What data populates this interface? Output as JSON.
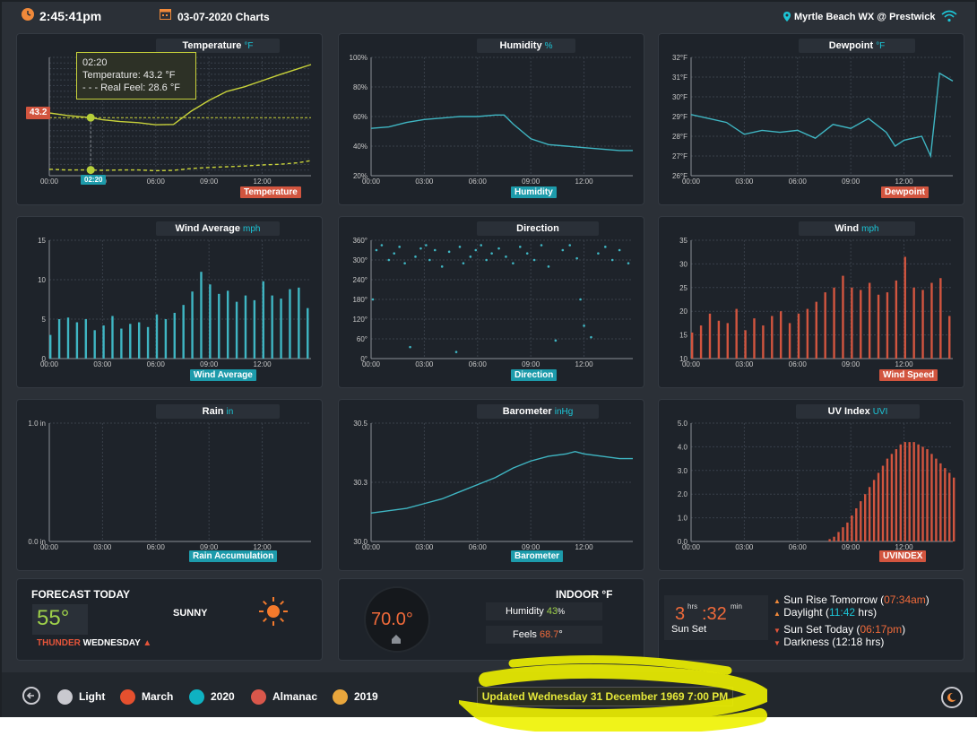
{
  "topbar": {
    "time": "2:45:41pm",
    "date_title": "03-07-2020 Charts",
    "station": "Myrtle Beach WX @ Prestwick"
  },
  "colors": {
    "background": "#2b3037",
    "panel": "#1e232a",
    "teal": "#1cc5d6",
    "series_teal": "#3fb6c3",
    "series_red": "#d2553f",
    "temperature_yellow": "#c8d23a",
    "accent_orange": "#f0893a",
    "highlight": "#eef200"
  },
  "panels": {
    "temperature": {
      "title": "Temperature",
      "unit": "°F",
      "tag": "Temperature",
      "tooltip": {
        "time": "02:20",
        "line1": "Temperature:  43.2 °F",
        "line2": "- - - Real Feel:  28.6 °F"
      },
      "crosshair_value": "43.2",
      "crosshair_time": "02:20",
      "x_ticks": [
        "00:00",
        "00",
        "06:00",
        "09:00",
        "12:00"
      ]
    },
    "humidity": {
      "title": "Humidity",
      "unit": "%",
      "tag": "Humidity",
      "y_ticks": [
        "100%",
        "80%",
        "60%",
        "40%",
        "20%"
      ],
      "x_ticks": [
        "00:00",
        "03:00",
        "06:00",
        "09:00",
        "12:00"
      ]
    },
    "dewpoint": {
      "title": "Dewpoint",
      "unit": "°F",
      "tag": "Dewpoint",
      "y_ticks": [
        "32°F",
        "31°F",
        "30°F",
        "29°F",
        "28°F",
        "27°F",
        "26°F"
      ],
      "x_ticks": [
        "00:00",
        "03:00",
        "06:00",
        "09:00",
        "12:00"
      ]
    },
    "wind_average": {
      "title": "Wind Average",
      "unit": "mph",
      "tag": "Wind Average",
      "y_ticks": [
        "15",
        "10",
        "5",
        "0"
      ],
      "x_ticks": [
        "00:00",
        "03:00",
        "06:00",
        "09:00",
        "12:00"
      ]
    },
    "direction": {
      "title": "Direction",
      "unit": "",
      "tag": "Direction",
      "y_ticks": [
        "360°",
        "300°",
        "240°",
        "180°",
        "120°",
        "60°",
        "0°"
      ],
      "x_ticks": [
        "00:00",
        "03:00",
        "06:00",
        "09:00",
        "12:00"
      ]
    },
    "wind": {
      "title": "Wind",
      "unit": "mph",
      "tag": "Wind Speed",
      "y_ticks": [
        "35",
        "30",
        "25",
        "20",
        "15",
        "10"
      ],
      "x_ticks": [
        "00:00",
        "03:00",
        "06:00",
        "09:00",
        "12:00"
      ]
    },
    "rain": {
      "title": "Rain",
      "unit": "in",
      "tag": "Rain Accumulation",
      "y_ticks": [
        "1.0 in",
        "0.0 in"
      ],
      "x_ticks": [
        "00:00",
        "03:00",
        "06:00",
        "09:00",
        "12:00"
      ]
    },
    "barometer": {
      "title": "Barometer",
      "unit": "inHg",
      "tag": "Barometer",
      "y_ticks": [
        "30.5",
        "30.3",
        "30.0"
      ],
      "x_ticks": [
        "00:00",
        "03:00",
        "06:00",
        "09:00",
        "12:00"
      ]
    },
    "uv": {
      "title": "UV Index",
      "unit": "UVI",
      "tag": "UVINDEX",
      "y_ticks": [
        "5.0",
        "4.0",
        "3.0",
        "2.0",
        "1.0",
        "0.0"
      ],
      "x_ticks": [
        "00:00",
        "03:00",
        "06:00",
        "09:00",
        "12:00"
      ]
    }
  },
  "forecast": {
    "heading": "FORECAST TODAY",
    "temp": "55°",
    "condition": "SUNNY",
    "alert_word": "THUNDER",
    "day": "WEDNESDAY"
  },
  "indoor": {
    "heading": "INDOOR °F",
    "temp": "70.0°",
    "humidity_label": "Humidity",
    "humidity_value": "43",
    "humidity_unit": "%",
    "feels_label": "Feels",
    "feels_value": "68.7",
    "feels_unit": "°"
  },
  "sun": {
    "hours": "3",
    "hrs_label": "hrs",
    "minutes": ":32",
    "min_label": "min",
    "caption": "Sun Set",
    "rise_label": "Sun Rise Tomorrow (",
    "rise_time": "07:34am",
    "daylight_label": "Daylight (",
    "daylight_time": "11:42",
    "daylight_suffix": " hrs)",
    "set_label": "Sun Set Today (",
    "set_time": "06:17pm",
    "darkness": "Darkness (12:18 hrs)",
    "close_paren": ")"
  },
  "bottombar": {
    "legend": [
      {
        "label": "Light",
        "color": "#c9c9cf"
      },
      {
        "label": "March",
        "color": "#e5502e"
      },
      {
        "label": "2020",
        "color": "#0fb2c2"
      },
      {
        "label": "Almanac",
        "color": "#d9574b"
      },
      {
        "label": "2019",
        "color": "#e9a63c"
      }
    ],
    "updated": "Updated Wednesday 31 December 1969 7:00 PM"
  },
  "chart_data": [
    {
      "type": "line",
      "title": "Temperature",
      "ylabel": "°F",
      "xlabel": "",
      "x_ticks": [
        "00:00",
        "03:00",
        "06:00",
        "09:00",
        "12:00"
      ],
      "series": [
        {
          "name": "Temperature",
          "x": [
            "00:00",
            "01:00",
            "02:20",
            "03:00",
            "04:00",
            "05:00",
            "06:00",
            "07:00",
            "08:00",
            "09:00",
            "10:00",
            "11:00",
            "12:00",
            "13:00",
            "14:00",
            "14:45"
          ],
          "values": [
            44.5,
            43.8,
            43.2,
            42.6,
            42.1,
            41.8,
            41.2,
            41.3,
            45.0,
            48.0,
            50.5,
            51.8,
            53.5,
            55.2,
            56.8,
            58.0
          ]
        },
        {
          "name": "Real Feel",
          "x": [
            "00:00",
            "01:00",
            "02:20",
            "03:00",
            "04:00",
            "05:00",
            "06:00",
            "07:00",
            "08:00",
            "09:00",
            "10:00",
            "11:00",
            "12:00",
            "13:00",
            "14:00",
            "14:45"
          ],
          "values": [
            28.8,
            28.6,
            28.6,
            28.5,
            28.6,
            28.6,
            28.4,
            28.5,
            29.0,
            29.3,
            29.5,
            29.7,
            30.0,
            30.2,
            30.6,
            31.2
          ]
        }
      ]
    },
    {
      "type": "line",
      "title": "Humidity",
      "ylabel": "%",
      "ylim": [
        20,
        100
      ],
      "series": [
        {
          "name": "Humidity",
          "x": [
            "00:00",
            "01:00",
            "02:00",
            "03:00",
            "04:00",
            "05:00",
            "06:00",
            "07:00",
            "07:30",
            "08:00",
            "09:00",
            "10:00",
            "11:00",
            "12:00",
            "13:00",
            "14:00",
            "14:45"
          ],
          "values": [
            52,
            53,
            56,
            58,
            59,
            60,
            60,
            61,
            61,
            55,
            45,
            41,
            40,
            39,
            38,
            37,
            37
          ]
        }
      ]
    },
    {
      "type": "line",
      "title": "Dewpoint",
      "ylabel": "°F",
      "ylim": [
        26,
        32
      ],
      "series": [
        {
          "name": "Dewpoint",
          "x": [
            "00:00",
            "01:00",
            "02:00",
            "03:00",
            "04:00",
            "05:00",
            "06:00",
            "07:00",
            "08:00",
            "09:00",
            "10:00",
            "11:00",
            "11:30",
            "12:00",
            "13:00",
            "13:30",
            "14:00",
            "14:45"
          ],
          "values": [
            29.1,
            28.9,
            28.7,
            28.1,
            28.3,
            28.2,
            28.3,
            27.9,
            28.6,
            28.4,
            28.9,
            28.2,
            27.5,
            27.8,
            28.0,
            27.0,
            31.2,
            30.8
          ]
        }
      ]
    },
    {
      "type": "bar",
      "title": "Wind Average",
      "ylabel": "mph",
      "ylim": [
        0,
        15
      ],
      "x": [
        "00:00",
        "00:30",
        "01:00",
        "01:30",
        "02:00",
        "02:30",
        "03:00",
        "03:30",
        "04:00",
        "04:30",
        "05:00",
        "05:30",
        "06:00",
        "06:30",
        "07:00",
        "07:30",
        "08:00",
        "08:30",
        "09:00",
        "09:30",
        "10:00",
        "10:30",
        "11:00",
        "11:30",
        "12:00",
        "12:30",
        "13:00",
        "13:30",
        "14:00",
        "14:30"
      ],
      "values": [
        3.0,
        5.0,
        5.2,
        4.6,
        5.0,
        3.6,
        4.2,
        5.4,
        3.8,
        4.4,
        4.6,
        4.0,
        5.6,
        5.0,
        5.8,
        6.8,
        8.5,
        11.0,
        9.4,
        8.2,
        8.6,
        7.2,
        8.0,
        7.4,
        9.8,
        8.0,
        7.6,
        8.8,
        9.0,
        6.4
      ]
    },
    {
      "type": "scatter",
      "title": "Direction",
      "ylabel": "°",
      "ylim": [
        0,
        360
      ],
      "points": [
        [
          0.1,
          180
        ],
        [
          0.3,
          330
        ],
        [
          0.6,
          345
        ],
        [
          1.0,
          300
        ],
        [
          1.3,
          320
        ],
        [
          1.6,
          340
        ],
        [
          1.9,
          290
        ],
        [
          2.2,
          35
        ],
        [
          2.5,
          310
        ],
        [
          2.8,
          335
        ],
        [
          3.1,
          345
        ],
        [
          3.3,
          300
        ],
        [
          3.6,
          330
        ],
        [
          4.0,
          280
        ],
        [
          4.4,
          325
        ],
        [
          4.8,
          20
        ],
        [
          5.0,
          340
        ],
        [
          5.2,
          290
        ],
        [
          5.6,
          310
        ],
        [
          5.9,
          330
        ],
        [
          6.2,
          345
        ],
        [
          6.5,
          300
        ],
        [
          6.8,
          320
        ],
        [
          7.2,
          335
        ],
        [
          7.6,
          310
        ],
        [
          8.0,
          290
        ],
        [
          8.4,
          340
        ],
        [
          8.8,
          320
        ],
        [
          9.2,
          300
        ],
        [
          9.6,
          345
        ],
        [
          10.0,
          280
        ],
        [
          10.4,
          55
        ],
        [
          10.8,
          330
        ],
        [
          11.2,
          345
        ],
        [
          11.6,
          305
        ],
        [
          11.8,
          180
        ],
        [
          12.0,
          100
        ],
        [
          12.4,
          65
        ],
        [
          12.8,
          320
        ],
        [
          13.2,
          340
        ],
        [
          13.6,
          300
        ],
        [
          14.0,
          330
        ],
        [
          14.5,
          290
        ]
      ]
    },
    {
      "type": "bar",
      "title": "Wind",
      "ylabel": "mph",
      "ylim": [
        10,
        35
      ],
      "x": [
        "00:00",
        "00:30",
        "01:00",
        "01:30",
        "02:00",
        "02:30",
        "03:00",
        "03:30",
        "04:00",
        "04:30",
        "05:00",
        "05:30",
        "06:00",
        "06:30",
        "07:00",
        "07:30",
        "08:00",
        "08:30",
        "09:00",
        "09:30",
        "10:00",
        "10:30",
        "11:00",
        "11:30",
        "12:00",
        "12:30",
        "13:00",
        "13:30",
        "14:00",
        "14:30"
      ],
      "values": [
        15.5,
        17.0,
        19.5,
        18.0,
        17.5,
        20.5,
        16.0,
        18.5,
        17.0,
        19.0,
        20.0,
        17.5,
        19.5,
        20.5,
        22.0,
        24.0,
        25.0,
        27.5,
        25.0,
        24.5,
        26.0,
        23.5,
        24.0,
        26.5,
        31.5,
        25.0,
        24.5,
        26.0,
        27.0,
        19.0
      ]
    },
    {
      "type": "line",
      "title": "Rain",
      "ylabel": "in",
      "ylim": [
        0,
        1
      ],
      "series": [
        {
          "name": "Rain Accumulation",
          "x": [
            "00:00",
            "14:45"
          ],
          "values": [
            0,
            0
          ]
        }
      ]
    },
    {
      "type": "line",
      "title": "Barometer",
      "ylabel": "inHg",
      "ylim": [
        30.0,
        30.5
      ],
      "series": [
        {
          "name": "Barometer",
          "x": [
            "00:00",
            "01:00",
            "02:00",
            "03:00",
            "04:00",
            "05:00",
            "06:00",
            "07:00",
            "08:00",
            "09:00",
            "10:00",
            "11:00",
            "11:30",
            "12:00",
            "13:00",
            "14:00",
            "14:45"
          ],
          "values": [
            30.12,
            30.13,
            30.14,
            30.16,
            30.18,
            30.21,
            30.24,
            30.27,
            30.31,
            30.34,
            30.36,
            30.37,
            30.38,
            30.37,
            30.36,
            30.35,
            30.35
          ]
        }
      ]
    },
    {
      "type": "bar",
      "title": "UV Index",
      "ylabel": "UVI",
      "ylim": [
        0,
        5
      ],
      "x": [
        "07:45",
        "08:00",
        "08:15",
        "08:30",
        "08:45",
        "09:00",
        "09:15",
        "09:30",
        "09:45",
        "10:00",
        "10:15",
        "10:30",
        "10:45",
        "11:00",
        "11:15",
        "11:30",
        "11:45",
        "12:00",
        "12:15",
        "12:30",
        "12:45",
        "13:00",
        "13:15",
        "13:30",
        "13:45",
        "14:00",
        "14:15",
        "14:30",
        "14:45"
      ],
      "values": [
        0.1,
        0.2,
        0.4,
        0.6,
        0.8,
        1.1,
        1.4,
        1.7,
        2.0,
        2.3,
        2.6,
        2.9,
        3.2,
        3.5,
        3.7,
        3.9,
        4.1,
        4.2,
        4.2,
        4.2,
        4.1,
        4.0,
        3.9,
        3.7,
        3.5,
        3.3,
        3.1,
        2.9,
        2.7
      ]
    }
  ]
}
